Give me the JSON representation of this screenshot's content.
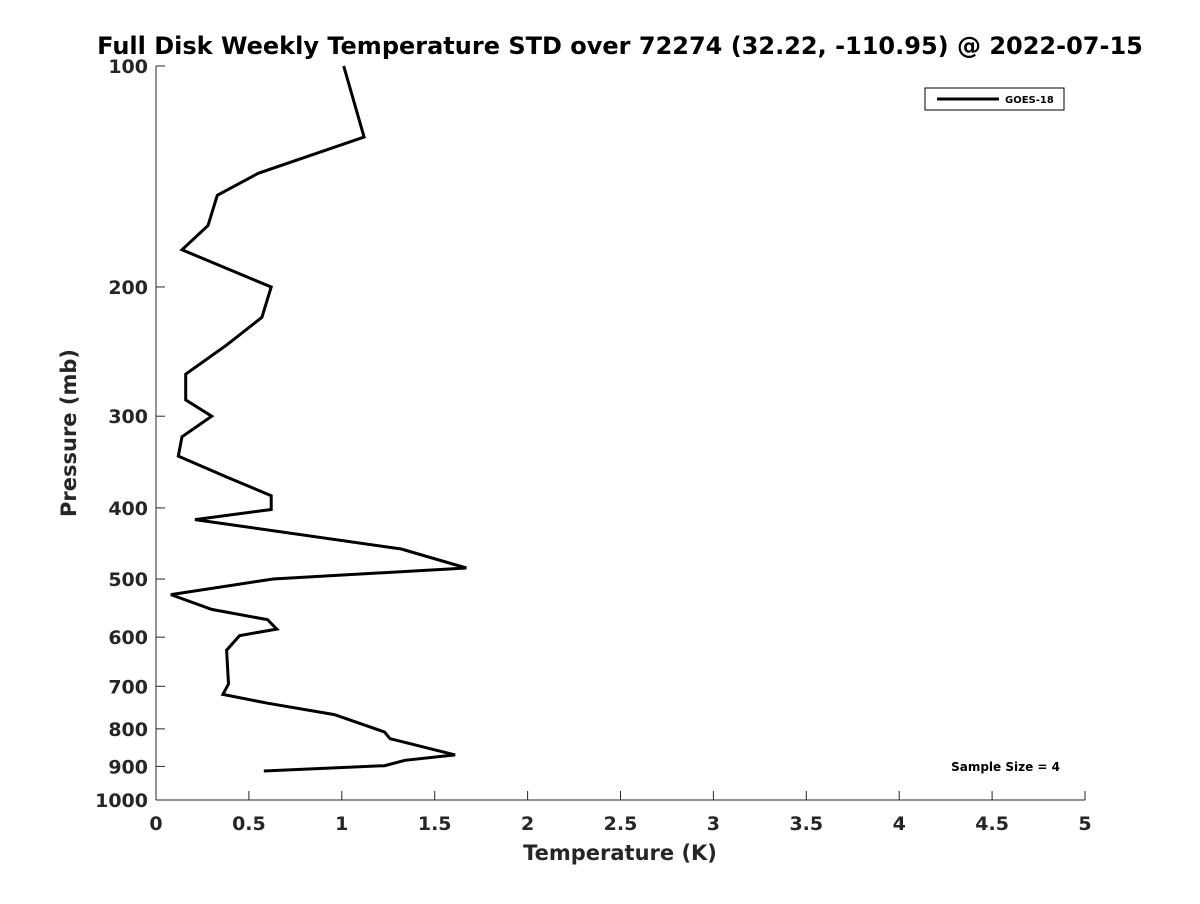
{
  "chart_data": {
    "type": "line",
    "title": "Full Disk Weekly Temperature STD over 72274 (32.22, -110.95) @ 2022-07-15",
    "xlabel": "Temperature (K)",
    "ylabel": "Pressure (mb)",
    "xlim": [
      0,
      5
    ],
    "ylim": [
      100,
      1000
    ],
    "y_scale": "log",
    "y_reversed": true,
    "x_ticks": [
      0,
      0.5,
      1,
      1.5,
      2,
      2.5,
      3,
      3.5,
      4,
      4.5,
      5
    ],
    "x_tick_labels": [
      "0",
      "0.5",
      "1",
      "1.5",
      "2",
      "2.5",
      "3",
      "3.5",
      "4",
      "4.5",
      "5"
    ],
    "y_ticks": [
      100,
      200,
      300,
      400,
      500,
      600,
      700,
      800,
      900,
      1000
    ],
    "y_tick_labels": [
      "100",
      "200",
      "300",
      "400",
      "500",
      "600",
      "700",
      "800",
      "900",
      "1000"
    ],
    "grid": false,
    "legend_position": "top-right",
    "series": [
      {
        "name": "GOES-18",
        "color": "#000000",
        "points": [
          {
            "x": 1.01,
            "p": 100
          },
          {
            "x": 1.12,
            "p": 125
          },
          {
            "x": 0.55,
            "p": 140
          },
          {
            "x": 0.33,
            "p": 150
          },
          {
            "x": 0.28,
            "p": 165
          },
          {
            "x": 0.14,
            "p": 178
          },
          {
            "x": 0.62,
            "p": 200
          },
          {
            "x": 0.57,
            "p": 220
          },
          {
            "x": 0.38,
            "p": 240
          },
          {
            "x": 0.16,
            "p": 263
          },
          {
            "x": 0.16,
            "p": 285
          },
          {
            "x": 0.3,
            "p": 300
          },
          {
            "x": 0.14,
            "p": 320
          },
          {
            "x": 0.12,
            "p": 340
          },
          {
            "x": 0.38,
            "p": 363
          },
          {
            "x": 0.62,
            "p": 385
          },
          {
            "x": 0.62,
            "p": 402
          },
          {
            "x": 0.21,
            "p": 415
          },
          {
            "x": 1.32,
            "p": 455
          },
          {
            "x": 1.67,
            "p": 483
          },
          {
            "x": 0.63,
            "p": 500
          },
          {
            "x": 0.08,
            "p": 525
          },
          {
            "x": 0.3,
            "p": 550
          },
          {
            "x": 0.6,
            "p": 568
          },
          {
            "x": 0.65,
            "p": 585
          },
          {
            "x": 0.45,
            "p": 597
          },
          {
            "x": 0.38,
            "p": 625
          },
          {
            "x": 0.39,
            "p": 695
          },
          {
            "x": 0.36,
            "p": 718
          },
          {
            "x": 0.6,
            "p": 738
          },
          {
            "x": 0.96,
            "p": 765
          },
          {
            "x": 1.23,
            "p": 808
          },
          {
            "x": 1.26,
            "p": 825
          },
          {
            "x": 1.61,
            "p": 868
          },
          {
            "x": 1.34,
            "p": 883
          },
          {
            "x": 1.23,
            "p": 898
          },
          {
            "x": 0.58,
            "p": 913
          }
        ]
      }
    ],
    "annotations": [
      {
        "text": "Sample Size = 4",
        "position": "bottom-right"
      }
    ]
  }
}
